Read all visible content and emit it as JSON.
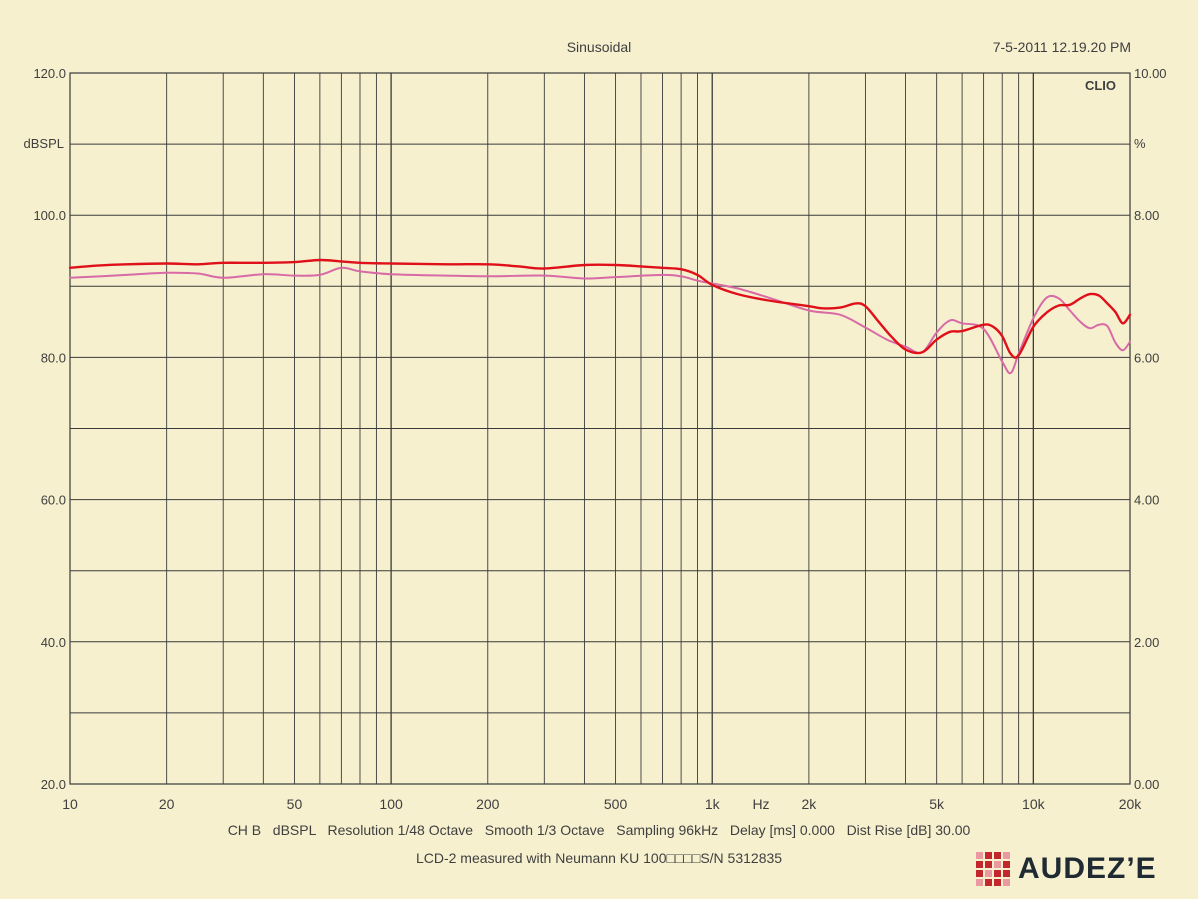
{
  "header": {
    "title": "Sinusoidal",
    "timestamp": "7-5-2011 12.19.20 PM",
    "brand": "CLIO"
  },
  "footer": {
    "settings_line": "CH B   dBSPL   Resolution 1/48 Octave   Smooth 1/3 Octave   Sampling 96kHz   Delay [ms] 0.000   Dist Rise [dB] 30.00",
    "caption": "LCD-2 measured with Neumann KU 100□□□□S/N 5312835",
    "logo_text": "AUDEZ’E"
  },
  "colors": {
    "background": "#f6f0cf",
    "grid": "#3a3a3a",
    "series_red": "#e0101a",
    "series_pink": "#d86aa6",
    "logo_red": "#c2272d",
    "logo_text": "#1f2a33"
  },
  "chart_data": {
    "type": "line",
    "title": "Sinusoidal",
    "x_scale": "log",
    "xlim": [
      10,
      20000
    ],
    "ylim": [
      20,
      120
    ],
    "y2lim": [
      0,
      10
    ],
    "xlabel": "Hz",
    "ylabel": "dBSPL",
    "y2label": "%",
    "grid": true,
    "x_ticks": [
      {
        "value": 10,
        "label": "10"
      },
      {
        "value": 20,
        "label": "20"
      },
      {
        "value": 50,
        "label": "50"
      },
      {
        "value": 100,
        "label": "100"
      },
      {
        "value": 200,
        "label": "200"
      },
      {
        "value": 500,
        "label": "500"
      },
      {
        "value": 1000,
        "label": "1k"
      },
      {
        "value": 2000,
        "label": "2k"
      },
      {
        "value": 5000,
        "label": "5k"
      },
      {
        "value": 10000,
        "label": "10k"
      },
      {
        "value": 20000,
        "label": "20k"
      }
    ],
    "y_ticks": [
      {
        "value": 120,
        "label": "120.0"
      },
      {
        "value": 100,
        "label": "100.0"
      },
      {
        "value": 80,
        "label": "80.0"
      },
      {
        "value": 60,
        "label": "60.0"
      },
      {
        "value": 40,
        "label": "40.0"
      },
      {
        "value": 20,
        "label": "20.0"
      }
    ],
    "y2_ticks": [
      {
        "value": 10,
        "label": "10.00"
      },
      {
        "value": 8,
        "label": "8.00"
      },
      {
        "value": 6,
        "label": "6.00"
      },
      {
        "value": 4,
        "label": "4.00"
      },
      {
        "value": 2,
        "label": "2.00"
      },
      {
        "value": 0,
        "label": "0.00"
      }
    ],
    "series": [
      {
        "color": "#e0101a",
        "x": [
          10,
          12,
          15,
          20,
          25,
          30,
          40,
          50,
          60,
          70,
          80,
          100,
          150,
          200,
          250,
          300,
          400,
          500,
          600,
          700,
          800,
          900,
          1000,
          1200,
          1500,
          2000,
          2200,
          2500,
          2800,
          3000,
          3300,
          3600,
          4000,
          4500,
          5000,
          5500,
          6000,
          7000,
          7500,
          8000,
          8500,
          9000,
          10000,
          11000,
          12000,
          13000,
          14000,
          15000,
          16000,
          17000,
          18000,
          19000,
          20000
        ],
        "y": [
          92.6,
          92.9,
          93.1,
          93.2,
          93.1,
          93.3,
          93.3,
          93.4,
          93.7,
          93.5,
          93.3,
          93.2,
          93.1,
          93.1,
          92.8,
          92.5,
          93.0,
          93.0,
          92.8,
          92.6,
          92.4,
          91.6,
          90.2,
          88.9,
          88.0,
          87.2,
          86.9,
          87.0,
          87.6,
          87.2,
          85.0,
          83.0,
          81.1,
          80.7,
          82.5,
          83.6,
          83.7,
          84.6,
          84.3,
          83.0,
          80.5,
          80.3,
          84.3,
          86.3,
          87.3,
          87.4,
          88.3,
          88.9,
          88.7,
          87.6,
          86.4,
          84.8,
          86.0
        ]
      },
      {
        "color": "#d86aa6",
        "x": [
          10,
          15,
          20,
          25,
          30,
          40,
          50,
          60,
          70,
          80,
          100,
          150,
          200,
          300,
          400,
          500,
          700,
          800,
          900,
          1000,
          1200,
          1500,
          2000,
          2500,
          3000,
          3500,
          4000,
          4500,
          5000,
          5500,
          6000,
          7000,
          8000,
          8500,
          9000,
          10000,
          11000,
          12000,
          13000,
          14000,
          15000,
          16000,
          17000,
          18000,
          19000,
          20000
        ],
        "y": [
          91.2,
          91.6,
          91.9,
          91.8,
          91.2,
          91.7,
          91.5,
          91.6,
          92.6,
          92.1,
          91.7,
          91.5,
          91.4,
          91.5,
          91.1,
          91.3,
          91.6,
          91.4,
          90.8,
          90.4,
          89.7,
          88.4,
          86.6,
          86.0,
          84.2,
          82.5,
          81.5,
          80.7,
          83.5,
          85.2,
          84.8,
          84.0,
          79.4,
          77.8,
          80.5,
          85.5,
          88.4,
          88.3,
          86.6,
          85.0,
          84.1,
          84.6,
          84.4,
          82.1,
          81.0,
          82.2
        ]
      }
    ]
  }
}
